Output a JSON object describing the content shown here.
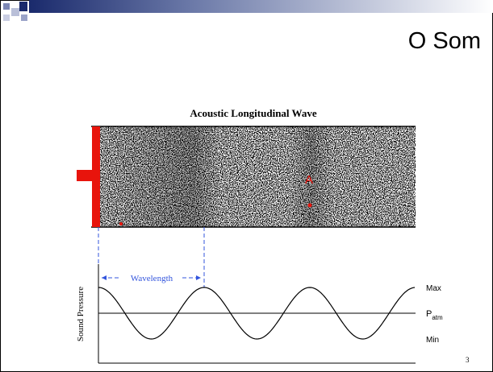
{
  "title": "O Som",
  "figure": {
    "title": "Acoustic Longitudinal Wave",
    "marker": "A",
    "wavelength_label": "Wavelength",
    "y_axis_label": "Sound Pressure",
    "levels": {
      "max": "Max",
      "patm": "P",
      "patm_sub": "atm",
      "min": "Min"
    }
  },
  "page_number": "3"
}
